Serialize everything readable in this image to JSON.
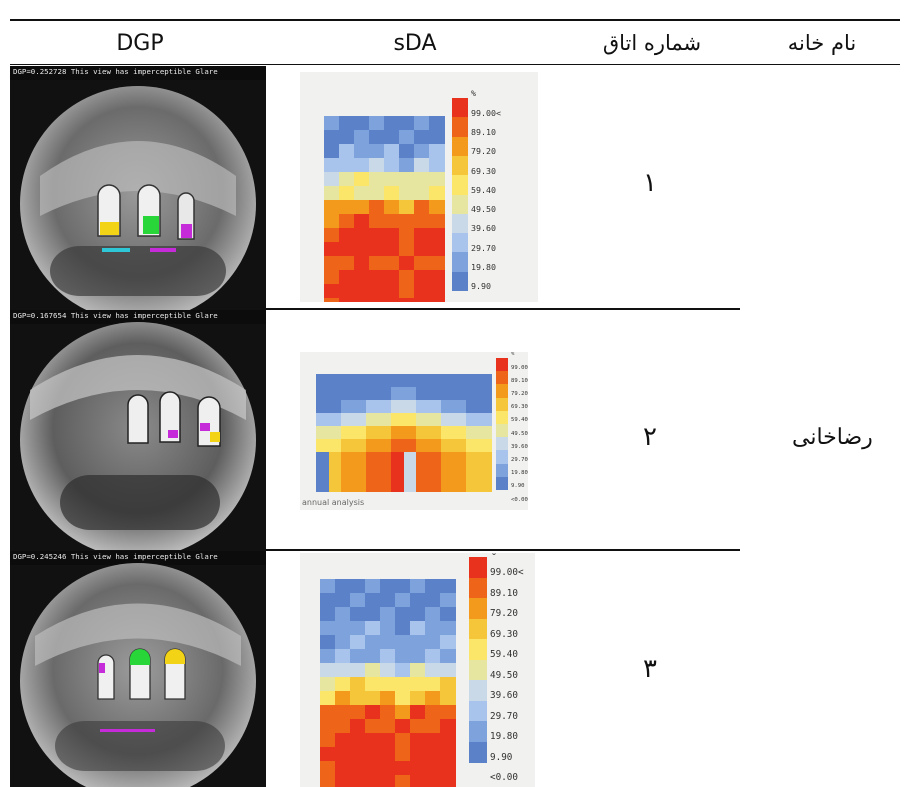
{
  "header": {
    "dgp": "DGP",
    "sda": "sDA",
    "room_number": "شماره اتاق",
    "house_name": "نام خانه"
  },
  "house": "رضاخانی",
  "rows": [
    {
      "room": "۱",
      "dgp_text": "DGP=0.252728 This view has imperceptible Glare"
    },
    {
      "room": "۲",
      "dgp_text": "DGP=0.167654 This view has imperceptible Glare"
    },
    {
      "room": "۳",
      "dgp_text": "DGP=0.245246 This view has imperceptible Glare"
    }
  ],
  "legend": {
    "unit": "%",
    "labels": [
      "99.00<",
      "89.10",
      "79.20",
      "69.30",
      "59.40",
      "49.50",
      "39.60",
      "29.70",
      "19.80",
      "9.90",
      "<0.00"
    ],
    "colors": [
      "#e8321e",
      "#ee6418",
      "#f39a1d",
      "#f6c63a",
      "#fbe66a",
      "#e6e6a0",
      "#c9d9e8",
      "#a8c4ec",
      "#7ea2dc",
      "#5b82c8"
    ],
    "annual_note": "annual analysis"
  },
  "sda_maps": [
    {
      "cols": 8,
      "profile": [
        0,
        0,
        1,
        2,
        4,
        5,
        7,
        8,
        9,
        9,
        9,
        9,
        9,
        9,
        9
      ]
    },
    {
      "cols": 14,
      "profile": [
        0,
        1,
        3,
        5,
        7,
        8,
        9,
        9,
        9
      ]
    },
    {
      "cols": 9,
      "profile": [
        0,
        0,
        0,
        1,
        1,
        2,
        3,
        5,
        6,
        8,
        9,
        9,
        9,
        9,
        9
      ]
    }
  ],
  "colors": {
    "rule": "#111111",
    "glare_yellow": "#f2d316",
    "glare_green": "#29d63a",
    "glare_magenta": "#c52bd9",
    "glare_cyan": "#2ec7d8"
  }
}
